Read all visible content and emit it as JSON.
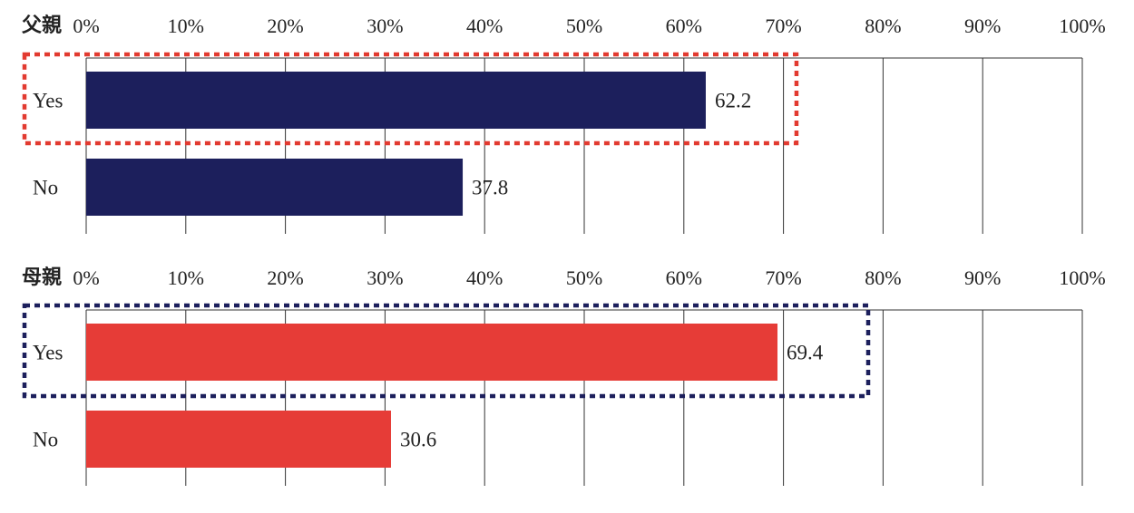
{
  "chart_data": [
    {
      "type": "bar",
      "orientation": "horizontal",
      "group_label": "父親",
      "categories": [
        "Yes",
        "No"
      ],
      "values": [
        62.2,
        37.8
      ],
      "value_labels": [
        "62.2",
        "37.8"
      ],
      "tick_labels": [
        "0%",
        "10%",
        "20%",
        "30%",
        "40%",
        "50%",
        "60%",
        "70%",
        "80%",
        "90%",
        "100%"
      ],
      "xlim": [
        0,
        100
      ],
      "bar_color": "#1c1f5c",
      "highlight": {
        "category": "Yes",
        "color": "#e23a30",
        "style": "dotted"
      },
      "grid": true
    },
    {
      "type": "bar",
      "orientation": "horizontal",
      "group_label": "母親",
      "categories": [
        "Yes",
        "No"
      ],
      "values": [
        69.4,
        30.6
      ],
      "value_labels": [
        "69.4",
        "30.6"
      ],
      "tick_labels": [
        "0%",
        "10%",
        "20%",
        "30%",
        "40%",
        "50%",
        "60%",
        "70%",
        "80%",
        "90%",
        "100%"
      ],
      "xlim": [
        0,
        100
      ],
      "bar_color": "#e63c37",
      "highlight": {
        "category": "Yes",
        "color": "#1c1f5c",
        "style": "dotted"
      },
      "grid": true
    }
  ]
}
